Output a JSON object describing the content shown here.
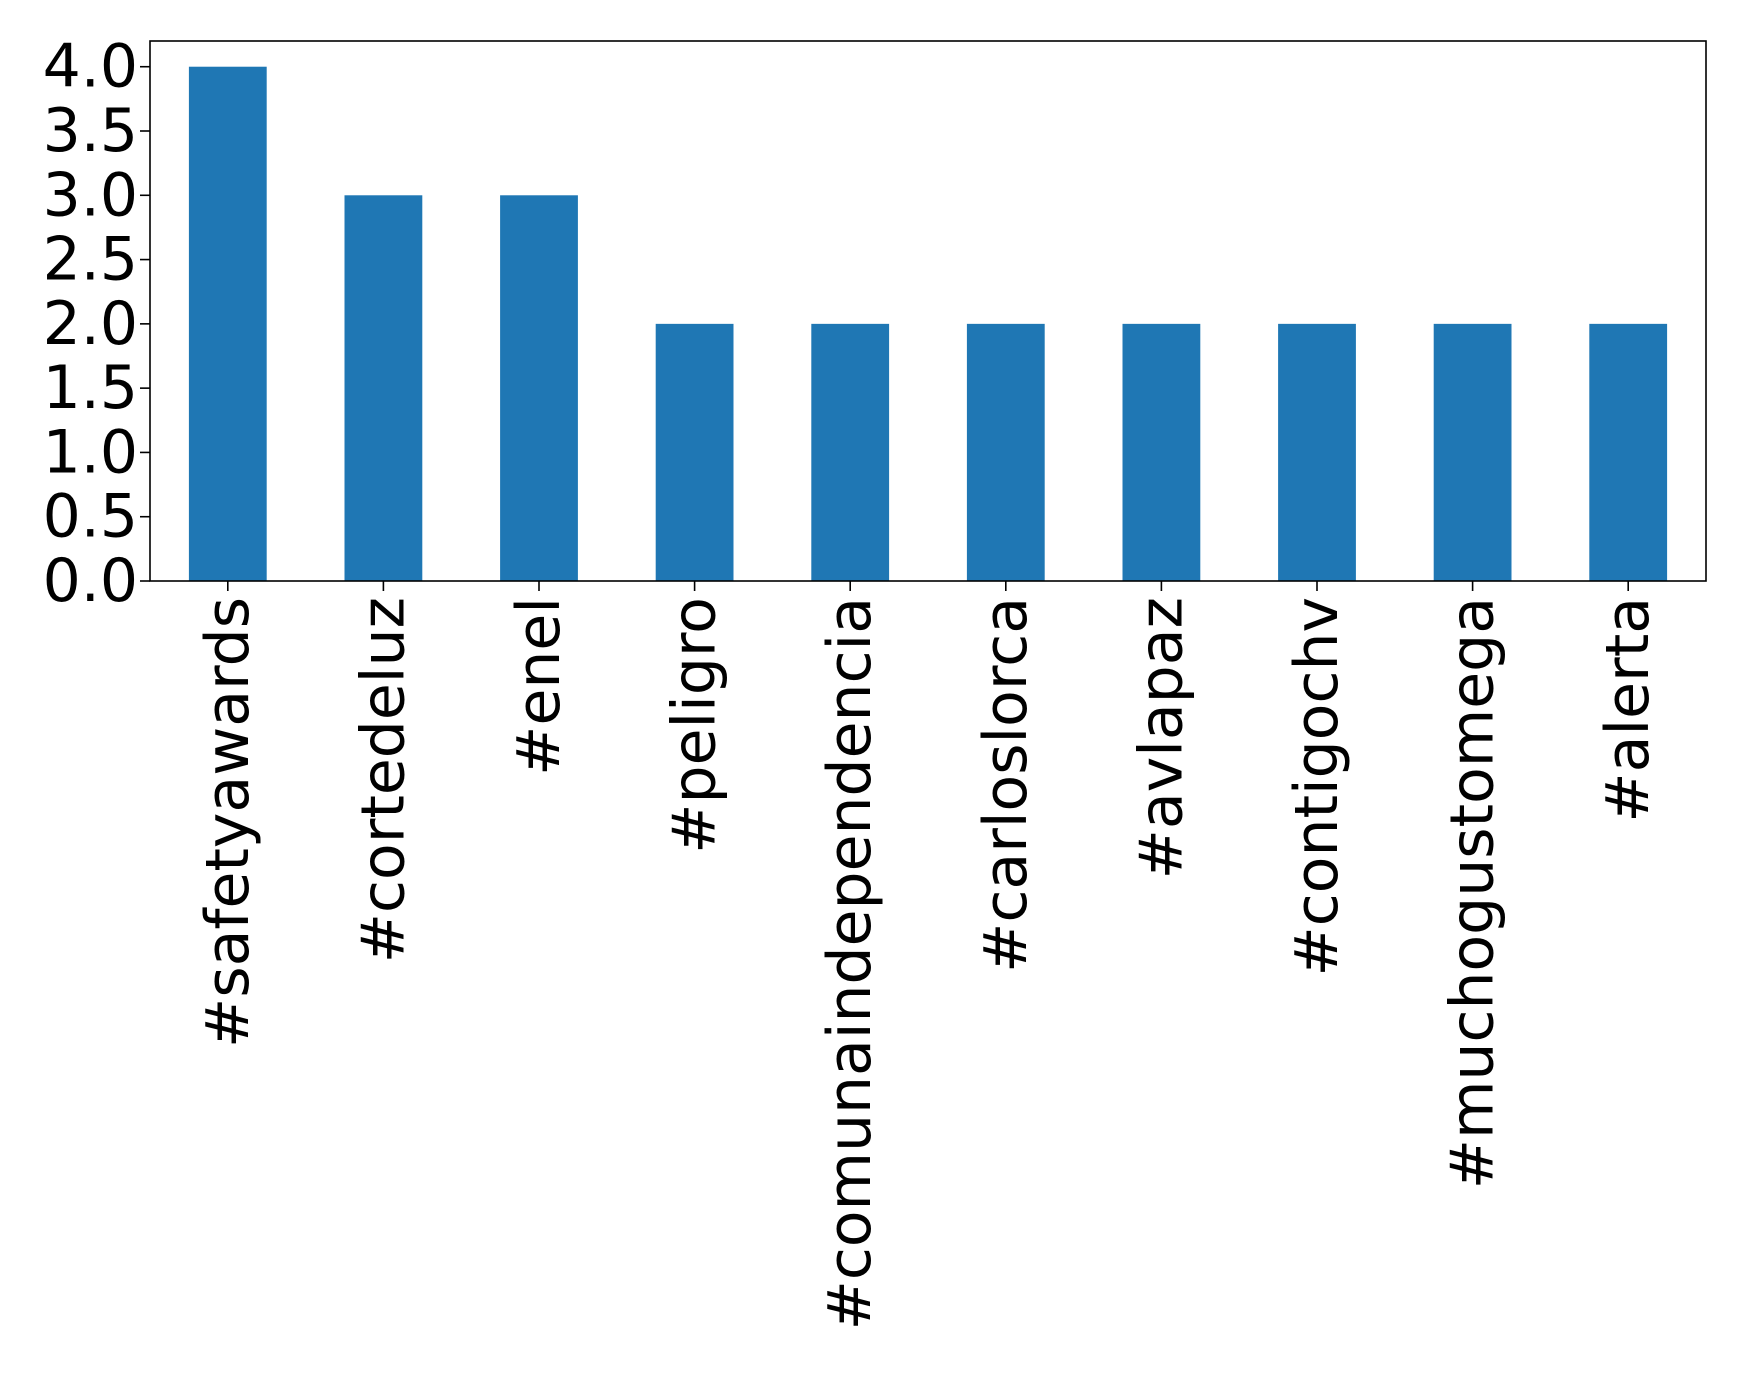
{
  "chart_data": {
    "type": "bar",
    "title": "",
    "xlabel": "",
    "ylabel": "",
    "categories": [
      "#safetyawards",
      "#cortedeluz",
      "#enel",
      "#peligro",
      "#comunaindependencia",
      "#carloslorca",
      "#avlapaz",
      "#contigochv",
      "#muchogustomega",
      "#alerta"
    ],
    "values": [
      4,
      3,
      3,
      2,
      2,
      2,
      2,
      2,
      2,
      2
    ],
    "ylim": [
      0,
      4.2
    ],
    "yticks": [
      0.0,
      0.5,
      1.0,
      1.5,
      2.0,
      2.5,
      3.0,
      3.5,
      4.0
    ],
    "ytick_labels": [
      "0.0",
      "0.5",
      "1.0",
      "1.5",
      "2.0",
      "2.5",
      "3.0",
      "3.5",
      "4.0"
    ],
    "grid": false,
    "legend": "none",
    "bar_color": "#1f77b4"
  }
}
